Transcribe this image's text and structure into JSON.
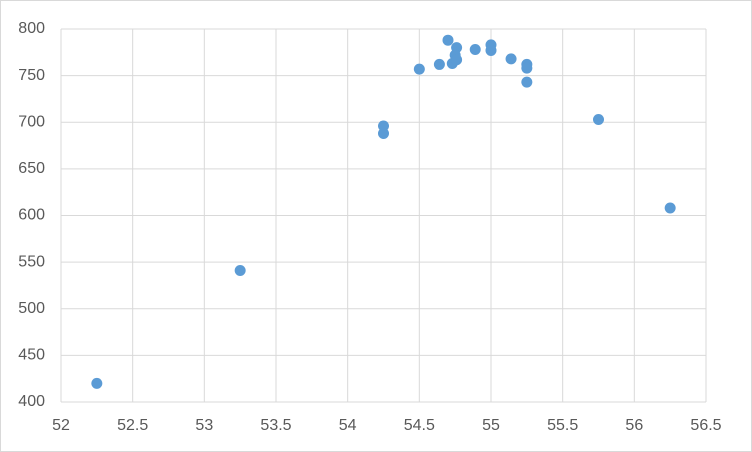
{
  "chart_data": {
    "type": "scatter",
    "color": "#5b9bd5",
    "grid": true,
    "x": [
      52.25,
      53.25,
      54.25,
      54.25,
      54.5,
      54.64,
      54.7,
      54.73,
      54.76,
      54.75,
      54.76,
      54.89,
      55,
      55,
      55.14,
      55.25,
      55.25,
      55.25,
      55.75,
      56.25
    ],
    "values": [
      420,
      541,
      696,
      688,
      757,
      762,
      788,
      763,
      780,
      772,
      767,
      778,
      783,
      777,
      768,
      762,
      758,
      743,
      703,
      608
    ],
    "xlim": [
      52,
      56.5
    ],
    "xticks": [
      52,
      52.5,
      53,
      53.5,
      54,
      54.5,
      55,
      55.5,
      56,
      56.5
    ],
    "ylim": [
      400,
      800
    ],
    "yticks": [
      400,
      450,
      500,
      550,
      600,
      650,
      700,
      750,
      800
    ]
  }
}
